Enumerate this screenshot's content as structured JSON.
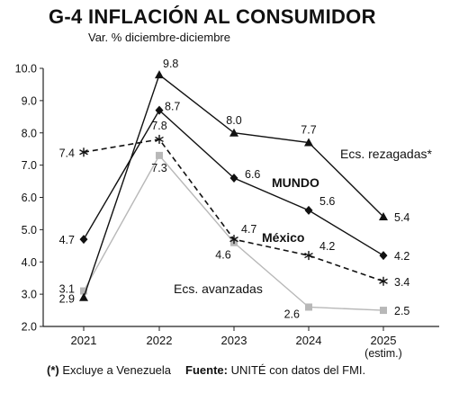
{
  "header": {
    "title": "G-4  INFLACIÓN AL CONSUMIDOR",
    "subtitle": "Var. % diciembre-diciembre"
  },
  "footer": {
    "note_mark": "(*)",
    "note_text": " Excluye a Venezuela",
    "source_label": "Fuente:",
    "source_text": " UNITÉ con datos del FMI."
  },
  "chart_data": {
    "type": "line",
    "title": "G-4  INFLACIÓN AL CONSUMIDOR",
    "subtitle": "Var. % diciembre-diciembre",
    "x": [
      "2021",
      "2022",
      "2023",
      "2024",
      "2025"
    ],
    "x_sublabels": [
      "",
      "",
      "",
      "",
      "(estim.)"
    ],
    "ylim": [
      2.0,
      10.0
    ],
    "yticks": [
      "2.0",
      "3.0",
      "4.0",
      "5.0",
      "6.0",
      "7.0",
      "8.0",
      "9.0",
      "10.0"
    ],
    "grid": false,
    "series": [
      {
        "name": "Ecs. rezagadas*",
        "values": [
          2.9,
          9.8,
          8.0,
          7.7,
          5.4
        ],
        "labels": [
          "2.9",
          "9.8",
          "8.0",
          "7.7",
          "5.4"
        ],
        "color": "#111111",
        "marker": "triangle",
        "style": "solid"
      },
      {
        "name": "MUNDO",
        "values": [
          4.7,
          8.7,
          6.6,
          5.6,
          4.2
        ],
        "labels": [
          "4.7",
          "8.7",
          "6.6",
          "5.6",
          "4.2"
        ],
        "color": "#111111",
        "marker": "diamond",
        "style": "solid"
      },
      {
        "name": "México",
        "values": [
          7.4,
          7.8,
          4.7,
          4.2,
          3.4
        ],
        "labels": [
          "7.4",
          "7.8",
          "4.7",
          "4.2",
          "3.4"
        ],
        "color": "#111111",
        "marker": "asterisk",
        "style": "dashed"
      },
      {
        "name": "Ecs. avanzadas",
        "values": [
          3.1,
          7.3,
          4.6,
          2.6,
          2.5
        ],
        "labels": [
          "3.1",
          "7.3",
          "4.6",
          "2.6",
          "2.5"
        ],
        "color": "#b8b8b8",
        "marker": "square",
        "style": "solid"
      }
    ]
  }
}
